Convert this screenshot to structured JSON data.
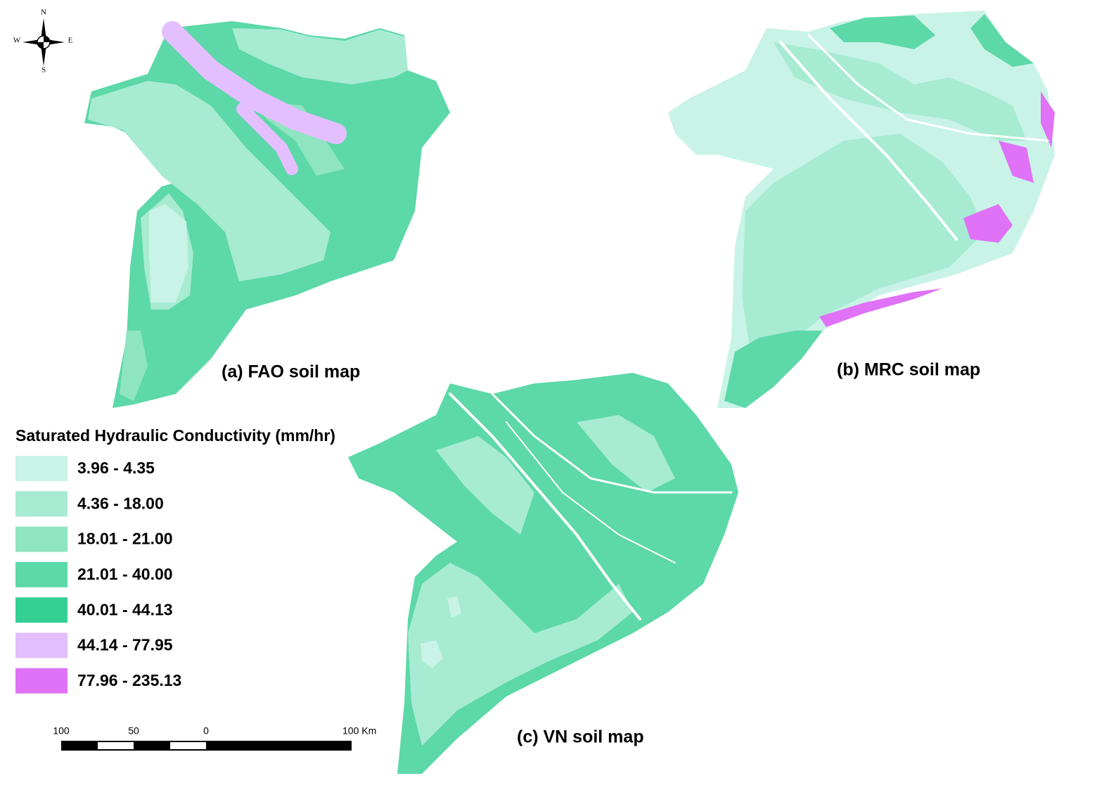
{
  "compass": {
    "n": "N",
    "e": "E",
    "s": "S",
    "w": "W"
  },
  "maps": [
    {
      "title": "(a) FAO soil map"
    },
    {
      "title": "(b) MRC soil map"
    },
    {
      "title": "(c) VN soil map"
    }
  ],
  "legend": {
    "title": "Saturated Hydraulic Conductivity (mm/hr)",
    "items": [
      {
        "label": "3.96 - 4.35",
        "color": "#c9f3e7"
      },
      {
        "label": "4.36 - 18.00",
        "color": "#a7ebd3"
      },
      {
        "label": "18.01 - 21.00",
        "color": "#8fe4c1"
      },
      {
        "label": "21.01 - 40.00",
        "color": "#5dd8a8"
      },
      {
        "label": "40.01 - 44.13",
        "color": "#33cf95"
      },
      {
        "label": "44.14 - 77.95",
        "color": "#e3bfff"
      },
      {
        "label": "77.96 - 235.13",
        "color": "#df72f6"
      }
    ]
  },
  "scale_bar": {
    "labels": [
      "100",
      "50",
      "0",
      "100 Km"
    ]
  }
}
